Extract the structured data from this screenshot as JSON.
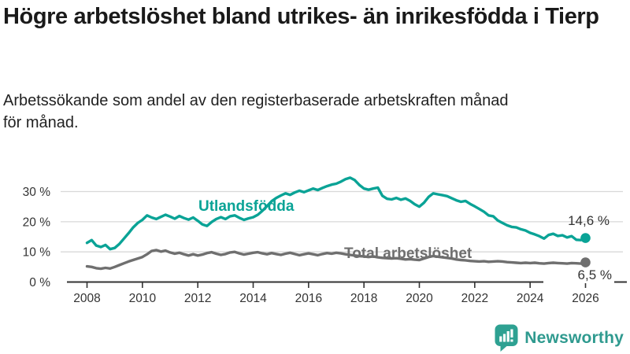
{
  "header": {
    "title": "Högre arbetslöshet bland utrikes- än inrikesfödda i Tierp",
    "subtitle": "Arbetssökande som andel av den registerbaserade arbetskraften månad för månad."
  },
  "chart_data": {
    "type": "line",
    "title": "Högre arbetslöshet bland utrikes- än inrikesfödda i Tierp",
    "subtitle": "Arbetssökande som andel av den registerbaserade arbetskraften månad för månad.",
    "x_start_year": 2008,
    "x_step_months": 2,
    "x_tick_years": [
      2008,
      2010,
      2012,
      2014,
      2016,
      2018,
      2020,
      2022,
      2024,
      2026
    ],
    "x_tick_labels": [
      "2008",
      "2010",
      "2012",
      "2014",
      "2016",
      "2018",
      "2020",
      "2022",
      "2024",
      "2026"
    ],
    "y_tick_values": [
      0,
      10,
      20,
      30
    ],
    "y_tick_labels": [
      "0 %",
      "10 %",
      "20 %",
      "30 %"
    ],
    "ylim": [
      0,
      36
    ],
    "xlim": [
      2008,
      2026
    ],
    "grid": "horizontal",
    "legend_position": "inline-labels",
    "colors": {
      "axis": "#333333",
      "gridline": "#d8d8d8",
      "teal": "#0AA396",
      "gray": "#6F6F6F"
    },
    "series": [
      {
        "name": "Utlandsfödda",
        "color": "#0AA396",
        "end_label": "14,6 %",
        "end_value": 14.6,
        "values": [
          13.0,
          13.9,
          12.1,
          11.6,
          12.3,
          10.9,
          11.3,
          12.6,
          14.4,
          16.2,
          18.1,
          19.6,
          20.6,
          22.1,
          21.4,
          20.9,
          21.6,
          22.3,
          21.7,
          21.0,
          21.9,
          21.2,
          20.7,
          21.4,
          20.3,
          19.1,
          18.6,
          19.9,
          20.9,
          21.5,
          20.9,
          21.8,
          22.1,
          21.3,
          20.6,
          21.1,
          21.5,
          22.3,
          23.6,
          25.2,
          26.8,
          27.9,
          28.7,
          29.4,
          28.9,
          29.7,
          30.3,
          29.8,
          30.4,
          31.0,
          30.5,
          31.2,
          31.8,
          32.3,
          32.6,
          33.3,
          34.1,
          34.6,
          33.8,
          32.2,
          31.0,
          30.6,
          31.0,
          31.3,
          28.6,
          27.6,
          27.4,
          27.9,
          27.3,
          27.7,
          26.9,
          25.8,
          25.0,
          26.3,
          28.2,
          29.4,
          29.1,
          28.8,
          28.5,
          27.8,
          27.1,
          26.6,
          26.9,
          25.9,
          25.1,
          24.2,
          23.3,
          22.1,
          21.8,
          20.4,
          19.6,
          18.8,
          18.3,
          18.1,
          17.5,
          17.1,
          16.3,
          15.8,
          15.2,
          14.4,
          15.6,
          16.0,
          15.3,
          15.5,
          14.8,
          15.2,
          14.0,
          13.9,
          14.6
        ]
      },
      {
        "name": "Total arbetslöshet",
        "color": "#6F6F6F",
        "end_label": "6,5 %",
        "end_value": 6.5,
        "values": [
          5.2,
          5.0,
          4.6,
          4.4,
          4.7,
          4.5,
          5.0,
          5.6,
          6.2,
          6.8,
          7.3,
          7.8,
          8.3,
          9.2,
          10.3,
          10.6,
          10.1,
          10.4,
          9.8,
          9.4,
          9.7,
          9.2,
          8.8,
          9.2,
          8.8,
          9.1,
          9.6,
          9.9,
          9.4,
          9.0,
          9.3,
          9.8,
          10.0,
          9.5,
          9.1,
          9.4,
          9.7,
          9.9,
          9.5,
          9.2,
          9.6,
          9.3,
          9.0,
          9.4,
          9.7,
          9.3,
          8.9,
          9.2,
          9.5,
          9.2,
          8.9,
          9.3,
          9.6,
          9.4,
          9.7,
          9.5,
          9.2,
          9.0,
          8.8,
          8.6,
          8.5,
          8.3,
          8.5,
          8.2,
          8.0,
          7.9,
          7.8,
          7.9,
          7.7,
          7.5,
          7.6,
          7.4,
          7.3,
          7.8,
          8.3,
          8.6,
          8.4,
          8.2,
          8.0,
          7.8,
          7.5,
          7.3,
          7.2,
          7.0,
          6.9,
          6.8,
          6.9,
          6.7,
          6.8,
          6.9,
          6.8,
          6.6,
          6.5,
          6.4,
          6.3,
          6.4,
          6.3,
          6.4,
          6.2,
          6.1,
          6.3,
          6.4,
          6.3,
          6.2,
          6.1,
          6.3,
          6.2,
          6.1,
          6.5
        ]
      }
    ]
  },
  "logo": {
    "text": "Newsworthy",
    "mark_color": "#2EA192",
    "text_color": "#2F9A8F"
  }
}
